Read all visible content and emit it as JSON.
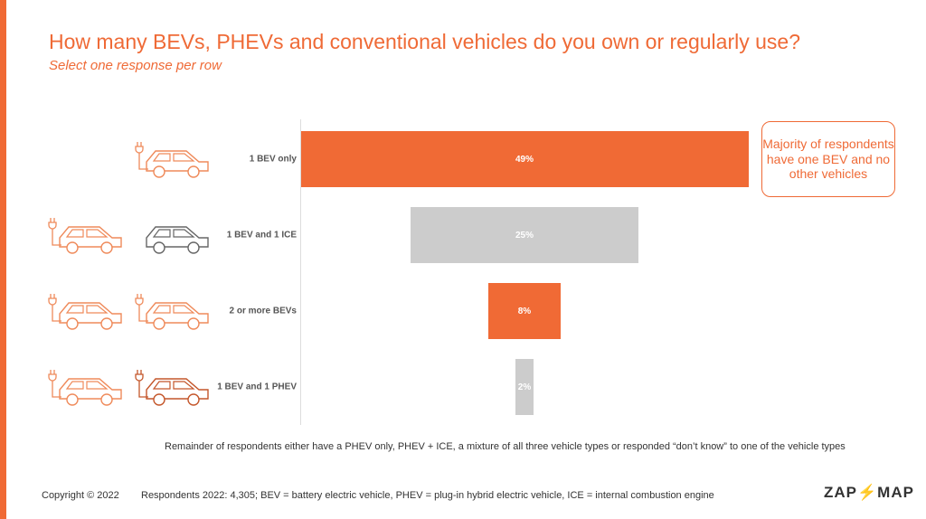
{
  "title": "How many BEVs, PHEVs and conventional vehicles do you own or regularly use?",
  "subtitle": "Select one response per row",
  "chart_data": {
    "type": "bar",
    "orientation": "horizontal-centered",
    "categories": [
      "1 BEV only",
      "1 BEV and 1 ICE",
      "2 or more BEVs",
      "1 BEV and 1 PHEV"
    ],
    "values": [
      49,
      25,
      8,
      2
    ],
    "value_labels": [
      "49%",
      "25%",
      "8%",
      "2%"
    ],
    "colors": [
      "#f06a35",
      "#cccccc",
      "#f06a35",
      "#cccccc"
    ],
    "icons": [
      [
        "bev"
      ],
      [
        "bev",
        "ice"
      ],
      [
        "bev",
        "bev"
      ],
      [
        "bev",
        "phev"
      ]
    ],
    "xlim": [
      0,
      49
    ]
  },
  "callout": "Majority of respondents have one BEV and no other vehicles",
  "note": "Remainder of respondents either have a PHEV only, PHEV + ICE, a mixture of all three vehicle types or responded “don’t know” to one of the vehicle types",
  "footer": {
    "copyright": "Copyright © 2022",
    "respondents": "Respondents 2022: 4,305; BEV = battery electric vehicle, PHEV = plug-in hybrid electric vehicle, ICE = internal combustion engine"
  },
  "logo": "ZAP MAP"
}
